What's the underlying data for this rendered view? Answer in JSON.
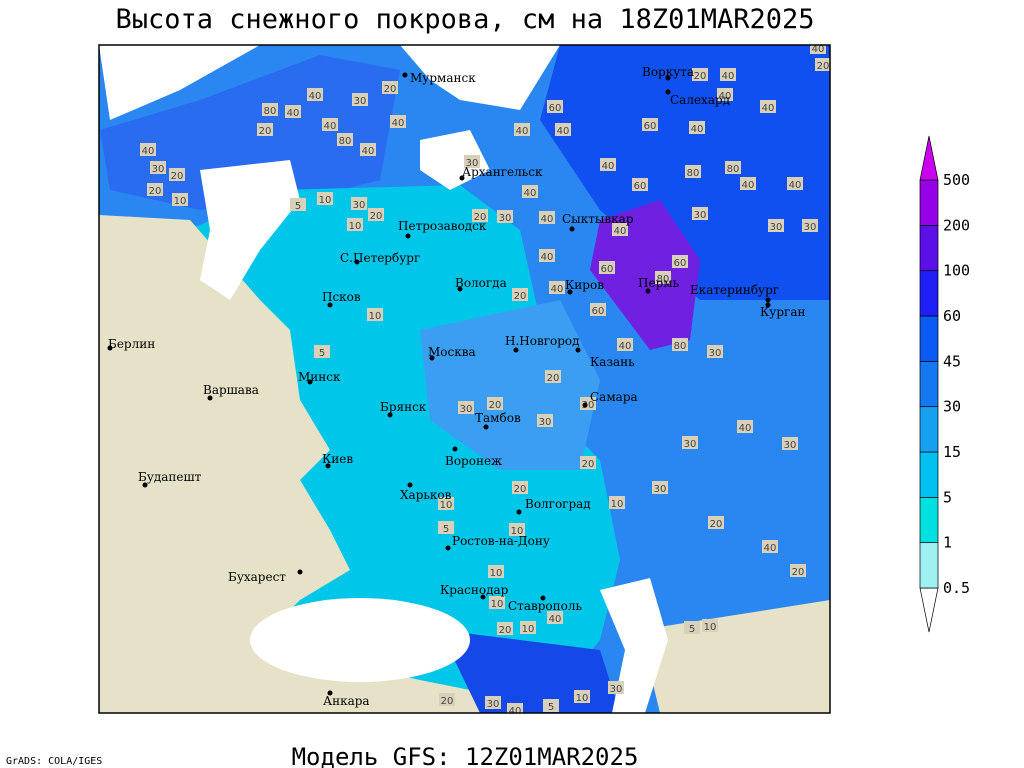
{
  "title": "Высота снежного покрова, см на 18Z01MAR2025",
  "subtitle": "Модель GFS: 12Z01MAR2025",
  "credit": "GrADS: COLA/IGES",
  "colorbar": {
    "levels": [
      0.5,
      1,
      5,
      15,
      30,
      45,
      60,
      100,
      200,
      500
    ],
    "colors": [
      "#ffffff",
      "#9ff0f0",
      "#00e0e0",
      "#00c0f0",
      "#18a0f0",
      "#1478f0",
      "#0a5af5",
      "#1e1ef5",
      "#5a10e6",
      "#9600e6",
      "#cc00f0"
    ]
  },
  "cities": [
    "Мурманск",
    "Воркута",
    "Салехард",
    "Архангельск",
    "Петрозаводск",
    "Сыктывкар",
    "С.Петербург",
    "Вологда",
    "Киров",
    "Пермь",
    "Екатеринбург",
    "Курган",
    "Псков",
    "Берлин",
    "Н.Новгород",
    "Москва",
    "Казань",
    "Минск",
    "Варшава",
    "Самара",
    "Брянск",
    "Тамбов",
    "Киев",
    "Воронеж",
    "Будапешт",
    "Харьков",
    "Волгоград",
    "Ростов-на-Дону",
    "Бухарест",
    "Краснодар",
    "Ставрополь",
    "Анкара"
  ],
  "contour_labels": [
    40,
    20,
    40,
    20,
    40,
    40,
    40,
    60,
    60,
    40,
    40,
    30,
    40,
    40,
    60,
    80,
    80,
    40,
    40,
    30,
    30,
    30,
    40,
    20,
    30,
    40,
    40,
    60,
    60,
    80,
    20,
    40,
    60,
    80,
    30,
    40,
    20,
    20,
    30,
    30,
    30,
    40,
    30,
    20,
    20,
    30,
    10,
    20,
    10,
    10,
    5,
    10,
    10,
    20,
    40,
    10,
    5,
    10,
    40,
    20,
    30,
    10,
    20,
    30,
    40,
    5,
    20,
    80,
    40,
    40,
    30,
    20,
    40,
    80,
    40,
    40,
    20,
    20,
    30,
    10,
    40,
    5,
    10,
    10,
    20,
    30,
    10,
    5,
    30
  ]
}
